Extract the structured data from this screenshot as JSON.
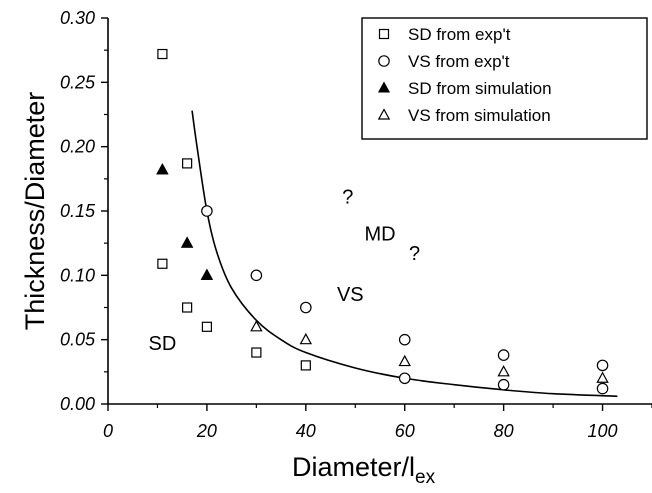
{
  "chart_data": {
    "type": "scatter",
    "xlabel": "Diameter/l",
    "xlabel_sub": "ex",
    "ylabel": "Thickness/Diameter",
    "xlim": [
      0,
      110
    ],
    "ylim": [
      0,
      0.3
    ],
    "xticks": [
      0,
      20,
      40,
      60,
      80,
      100
    ],
    "xtick_labels": [
      "0",
      "20",
      "40",
      "60",
      "80",
      "100"
    ],
    "yticks": [
      0,
      0.05,
      0.1,
      0.15,
      0.2,
      0.25,
      0.3
    ],
    "ytick_labels": [
      "0.00",
      "0.05",
      "0.10",
      "0.15",
      "0.20",
      "0.25",
      "0.30"
    ],
    "grid": false,
    "legend_position": "top-right",
    "series": [
      {
        "name": "SD from exp't",
        "marker": "square-open",
        "points": [
          [
            11,
            0.272
          ],
          [
            11,
            0.109
          ],
          [
            16,
            0.187
          ],
          [
            16,
            0.075
          ],
          [
            20,
            0.06
          ],
          [
            30,
            0.04
          ],
          [
            40,
            0.03
          ]
        ]
      },
      {
        "name": "VS from exp't",
        "marker": "circle-open",
        "points": [
          [
            20,
            0.15
          ],
          [
            30,
            0.1
          ],
          [
            40,
            0.075
          ],
          [
            60,
            0.05
          ],
          [
            60,
            0.02
          ],
          [
            80,
            0.038
          ],
          [
            80,
            0.015
          ],
          [
            100,
            0.03
          ],
          [
            100,
            0.012
          ]
        ]
      },
      {
        "name": "SD from simulation",
        "marker": "triangle-filled",
        "points": [
          [
            11,
            0.182
          ],
          [
            16,
            0.125
          ],
          [
            20,
            0.1
          ]
        ]
      },
      {
        "name": "VS from simulation",
        "marker": "triangle-open",
        "points": [
          [
            11,
            0.182
          ],
          [
            16,
            0.125
          ],
          [
            20,
            0.1
          ],
          [
            30,
            0.06
          ],
          [
            40,
            0.05
          ],
          [
            60,
            0.033
          ],
          [
            80,
            0.025
          ],
          [
            100,
            0.02
          ]
        ]
      }
    ],
    "boundary_curve": [
      [
        17,
        0.228
      ],
      [
        18,
        0.2
      ],
      [
        20,
        0.15
      ],
      [
        22,
        0.118
      ],
      [
        25,
        0.09
      ],
      [
        30,
        0.065
      ],
      [
        35,
        0.05
      ],
      [
        40,
        0.04
      ],
      [
        50,
        0.028
      ],
      [
        60,
        0.02
      ],
      [
        70,
        0.015
      ],
      [
        80,
        0.011
      ],
      [
        90,
        0.008
      ],
      [
        103,
        0.006
      ]
    ],
    "annotations": [
      {
        "text": "SD",
        "x": 11,
        "y": 0.042
      },
      {
        "text": "VS",
        "x": 49,
        "y": 0.08
      },
      {
        "text": "MD",
        "x": 55,
        "y": 0.127
      },
      {
        "text": "?",
        "x": 48.5,
        "y": 0.156
      },
      {
        "text": "?",
        "x": 62,
        "y": 0.112
      }
    ]
  }
}
